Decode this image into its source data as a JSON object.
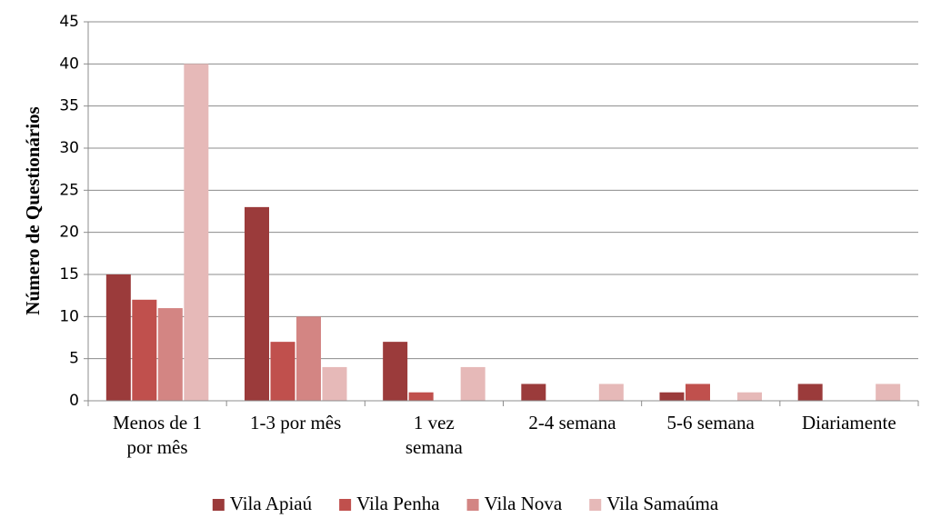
{
  "chart_data": {
    "type": "bar",
    "y_label": "Número de Questionários",
    "categories": [
      "Menos de 1\npor mês",
      "1-3 por mês",
      "1 vez\nsemana",
      "2-4 semana",
      "5-6 semana",
      "Diariamente"
    ],
    "series": [
      {
        "name": "Vila Apiaú",
        "color": "#9b3b3b",
        "values": [
          15,
          23,
          7,
          2,
          1,
          2
        ]
      },
      {
        "name": "Vila Penha",
        "color": "#c0504d",
        "values": [
          12,
          7,
          1,
          0,
          2,
          0
        ]
      },
      {
        "name": "Vila Nova",
        "color": "#d38583",
        "values": [
          11,
          10,
          0,
          0,
          0,
          0
        ]
      },
      {
        "name": "Vila Samaúma",
        "color": "#e6b9b8",
        "values": [
          40,
          4,
          4,
          2,
          1,
          2
        ]
      }
    ],
    "ylim": [
      0,
      45
    ],
    "yticks": [
      0,
      5,
      10,
      15,
      20,
      25,
      30,
      35,
      40,
      45
    ],
    "grid": true,
    "legend": "bottom"
  }
}
